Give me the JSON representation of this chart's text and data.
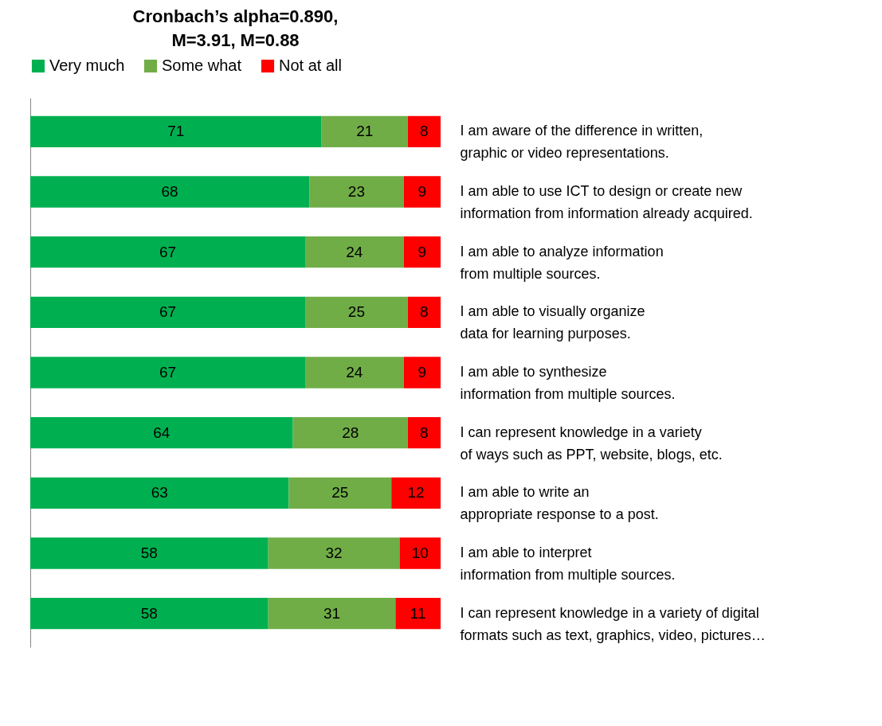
{
  "chart_data": {
    "type": "bar",
    "orientation": "horizontal",
    "stacked": true,
    "data_labels": true,
    "legend": "top",
    "title": "Cronbach’s alpha=0.890,\nM=3.91, M=0.88",
    "categories": [
      "I am aware of the difference in written, graphic or video representations.",
      "I am able to use ICT to design or create new information from information already acquired.",
      "I am able to analyze information from multiple sources.",
      "I am able to visually organize data for learning purposes.",
      "I am able to synthesize information from multiple sources.",
      "I can represent knowledge in a variety of ways such as PPT, website, blogs, etc.",
      "I am able to write an appropriate response to a post.",
      "I am able to interpret information from multiple sources.",
      "I can represent knowledge in a variety of digital formats such as text, graphics, video, pictures…"
    ],
    "series": [
      {
        "name": "Very much",
        "color": "#00b050",
        "values": [
          71,
          68,
          67,
          67,
          67,
          64,
          63,
          58,
          58
        ]
      },
      {
        "name": "Some what",
        "color": "#70ad47",
        "values": [
          21,
          23,
          24,
          25,
          24,
          28,
          25,
          32,
          31
        ]
      },
      {
        "name": "Not at all",
        "color": "#ff0000",
        "values": [
          8,
          9,
          9,
          8,
          9,
          8,
          12,
          10,
          11
        ]
      }
    ]
  }
}
